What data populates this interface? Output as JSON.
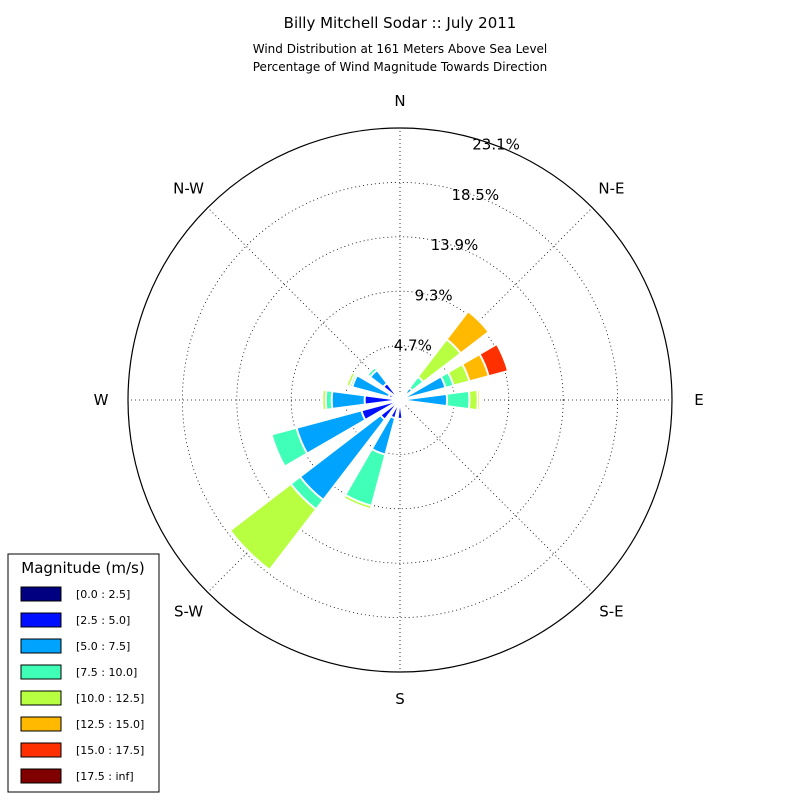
{
  "chart_data": {
    "type": "windrose",
    "title": "Billy Mitchell Sodar :: July 2011",
    "subtitle_lines": [
      "Wind Distribution at 161 Meters Above Sea Level",
      "Percentage of Wind Magnitude Towards Direction"
    ],
    "direction_labels": [
      {
        "name": "N",
        "angle": 0
      },
      {
        "name": "N-E",
        "angle": 45
      },
      {
        "name": "E",
        "angle": 90
      },
      {
        "name": "S-E",
        "angle": 135
      },
      {
        "name": "S",
        "angle": 180
      },
      {
        "name": "S-W",
        "angle": 225
      },
      {
        "name": "W",
        "angle": 270
      },
      {
        "name": "N-W",
        "angle": 315
      }
    ],
    "radial_ticks": [
      "4.7%",
      "9.3%",
      "13.9%",
      "18.5%",
      "23.1%"
    ],
    "rmax": 23.1,
    "legend": {
      "title": "Magnitude (m/s)",
      "bins": [
        {
          "label": "[0.0 : 2.5]",
          "color": "#000080"
        },
        {
          "label": "[2.5 : 5.0]",
          "color": "#0010ff"
        },
        {
          "label": "[5.0 : 7.5]",
          "color": "#00a4ff"
        },
        {
          "label": "[7.5 : 10.0]",
          "color": "#40ffb7"
        },
        {
          "label": "[10.0 : 12.5]",
          "color": "#b7ff40"
        },
        {
          "label": "[12.5 : 15.0]",
          "color": "#ffb900"
        },
        {
          "label": "[15.0 : 17.5]",
          "color": "#ff3000"
        },
        {
          "label": "[17.5 : inf]",
          "color": "#800000"
        }
      ]
    },
    "sector_width_deg": 15,
    "sectors": [
      {
        "direction": 0,
        "cumulative": [
          0.2,
          0.6
        ]
      },
      {
        "direction": 22.5,
        "cumulative": [
          0.2,
          0.5
        ]
      },
      {
        "direction": 45,
        "cumulative": [
          0.3,
          0.8,
          1.3,
          2.5,
          6.5,
          9.5
        ]
      },
      {
        "direction": 67.5,
        "cumulative": [
          0.2,
          0.6,
          4.0,
          4.7,
          6.1,
          7.8,
          9.5
        ]
      },
      {
        "direction": 90,
        "cumulative": [
          0.2,
          0.6,
          4.0,
          5.9,
          6.6,
          6.8
        ]
      },
      {
        "direction": 112.5,
        "cumulative": [
          0.2,
          0.4
        ]
      },
      {
        "direction": 135,
        "cumulative": [
          0.2,
          0.4
        ]
      },
      {
        "direction": 157.5,
        "cumulative": [
          0.2,
          0.4
        ]
      },
      {
        "direction": 180,
        "cumulative": [
          0.2,
          1.6
        ]
      },
      {
        "direction": 202.5,
        "cumulative": [
          0.2,
          1.6,
          4.8,
          9.3,
          9.6
        ]
      },
      {
        "direction": 225,
        "cumulative": [
          0.2,
          2.1,
          10.7,
          11.7,
          18.2
        ]
      },
      {
        "direction": 247.5,
        "cumulative": [
          0.2,
          3.4,
          9.1,
          11.3
        ]
      },
      {
        "direction": 270,
        "cumulative": [
          0.2,
          3.0,
          5.8,
          6.3,
          6.6
        ]
      },
      {
        "direction": 292.5,
        "cumulative": [
          0.2,
          1.0,
          4.2,
          4.4,
          4.7
        ]
      },
      {
        "direction": 315,
        "cumulative": [
          0.2,
          1.8,
          3.2,
          3.5,
          3.6
        ]
      },
      {
        "direction": 337.5,
        "cumulative": [
          0.2,
          0.6
        ]
      }
    ]
  }
}
